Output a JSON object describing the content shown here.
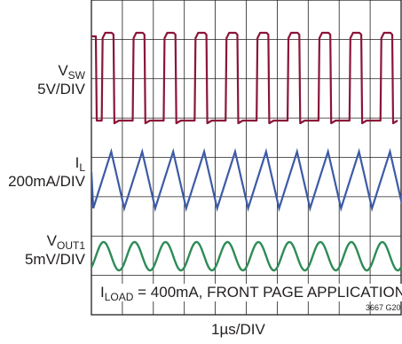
{
  "chart_data": {
    "type": "line",
    "x_per_div": "1µs/DIV",
    "figure_id": "3667 G20",
    "annotation": {
      "pre": "I",
      "sub": "LOAD",
      "post": " = 400mA, FRONT PAGE APPLICATION"
    },
    "divisions": {
      "x": 10,
      "y": 8
    },
    "traces": [
      {
        "key": "vsw",
        "label_main": "V",
        "label_sub": "SW",
        "scale": "5V/DIV",
        "color": "#8b1538",
        "waveform": "square",
        "period_div": 1.0,
        "high_level": 10,
        "low_level": 0,
        "units": "V"
      },
      {
        "key": "il",
        "label_main": "I",
        "label_sub": "L",
        "scale": "200mA/DIV",
        "color": "#3c5aa6",
        "waveform": "triangle",
        "period_div": 1.0,
        "peak": 600,
        "valley": 200,
        "units": "mA"
      },
      {
        "key": "vout1",
        "label_main": "V",
        "label_sub": "OUT1",
        "scale": "5mV/DIV",
        "color": "#2e8b57",
        "waveform": "sine",
        "period_div": 1.0,
        "amplitude_pp": 5,
        "units": "mV"
      }
    ]
  }
}
